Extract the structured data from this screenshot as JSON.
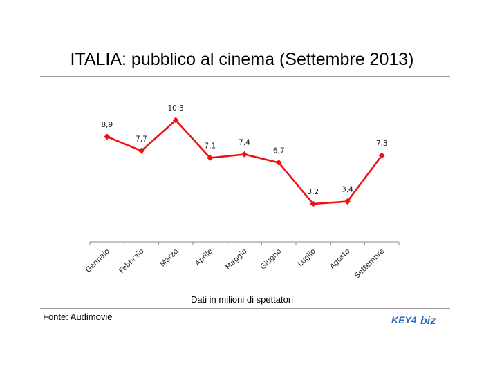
{
  "title": "ITALIA: pubblico al cinema (Settembre 2013)",
  "xlabel": "Dati in milioni di spettatori",
  "source": "Fonte: Audimovie",
  "logo": {
    "part1": "KEY",
    "part2": "biz"
  },
  "colors": {
    "series": "#ee1111",
    "axis": "#888888",
    "rule": "#9a9a9a"
  },
  "chart_data": {
    "type": "line",
    "categories": [
      "Gennaio",
      "Febbraio",
      "Marzo",
      "Aprile",
      "Maggio",
      "Giugno",
      "Luglio",
      "Agosto",
      "Settembre"
    ],
    "series": [
      {
        "values": [
          8.9,
          7.7,
          10.3,
          7.1,
          7.4,
          6.7,
          3.2,
          3.4,
          7.3
        ]
      }
    ],
    "data_labels": [
      "8,9",
      "7,7",
      "10,3",
      "7,1",
      "7,4",
      "6,7",
      "3,2",
      "3,4",
      "7,3"
    ],
    "title": "ITALIA: pubblico al cinema (Settembre 2013)",
    "xlabel": "Dati in milioni di spettatori",
    "ylabel": "",
    "marker": "diamond",
    "grid": false,
    "legend": false,
    "y_axis_shown": false
  }
}
